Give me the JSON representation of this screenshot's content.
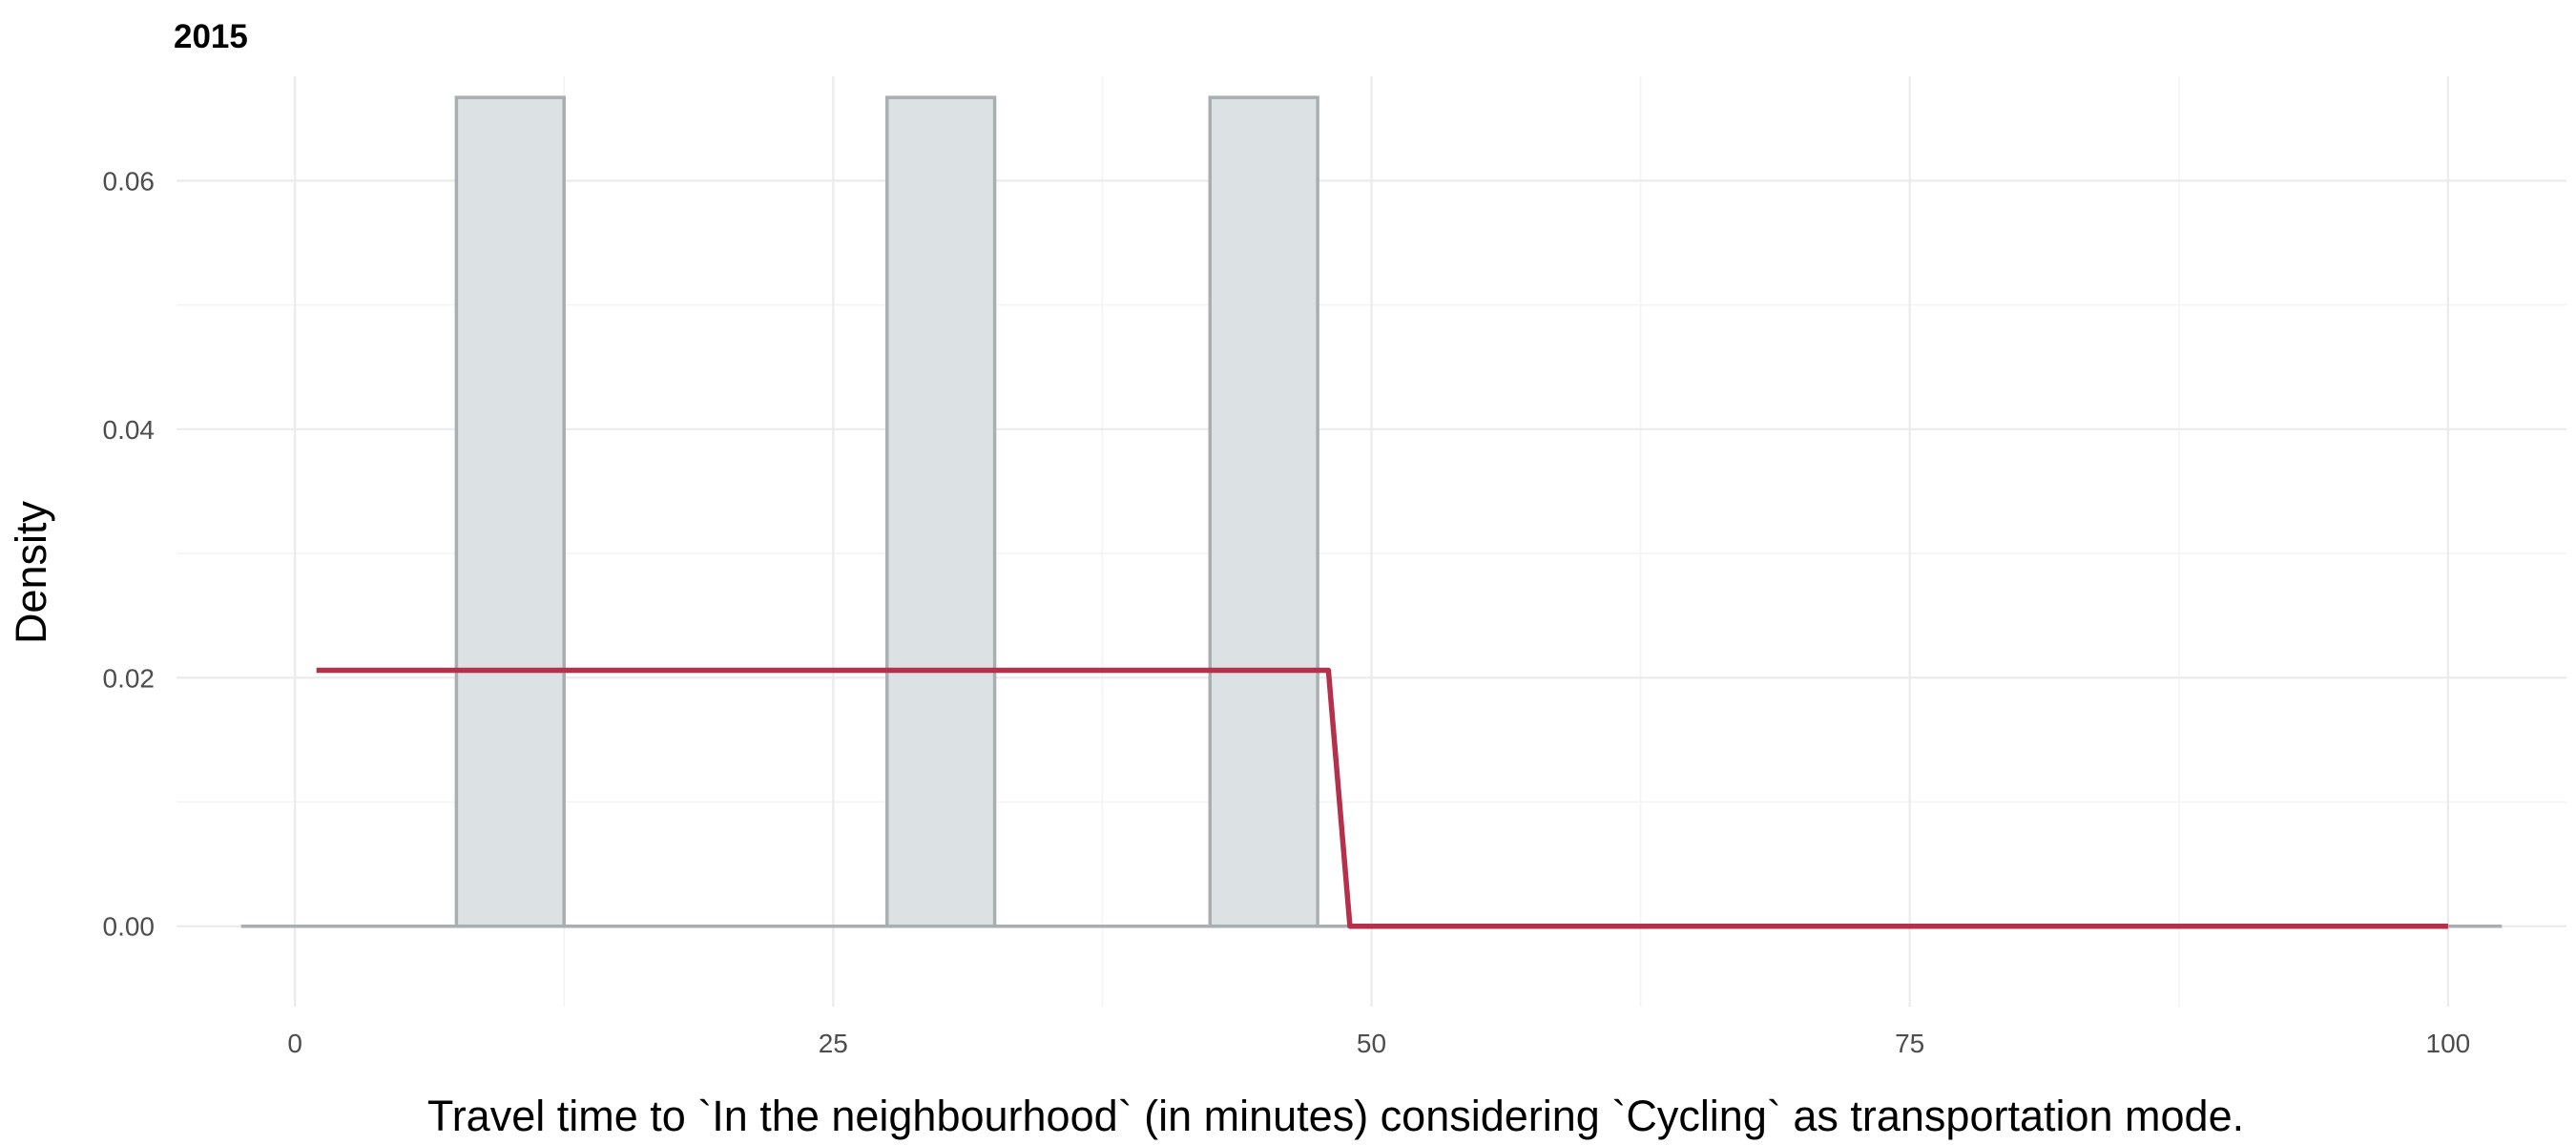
{
  "chart_data": {
    "type": "bar",
    "title": "2015",
    "xlabel": "Travel time to `In the neighbourhood` (in minutes) considering `Cycling` as transportation mode.",
    "ylabel": "Density",
    "xlim": [
      -2.5,
      102.5
    ],
    "ylim": [
      0,
      0.0667
    ],
    "x_ticks": [
      0,
      25,
      50,
      75,
      100
    ],
    "x_tick_labels": [
      "0",
      "25",
      "50",
      "75",
      "100"
    ],
    "y_ticks": [
      0,
      0.02,
      0.04,
      0.06
    ],
    "y_tick_labels": [
      "0.00",
      "0.02",
      "0.04",
      "0.06"
    ],
    "grid": true,
    "bins": [
      {
        "x0": 7.5,
        "x1": 12.5,
        "density": 0.0667
      },
      {
        "x0": 27.5,
        "x1": 32.5,
        "density": 0.0667
      },
      {
        "x0": 42.5,
        "x1": 47.5,
        "density": 0.0667
      }
    ],
    "histogram_range": [
      -2.5,
      102.5
    ],
    "density_line": {
      "x": [
        1,
        48,
        49,
        100
      ],
      "y": [
        0.0206,
        0.0206,
        0,
        0
      ]
    },
    "colors": {
      "bar_fill": "#dce1e4",
      "bar_outline": "#a9aeb1",
      "density_line": "#b5304a",
      "grid": "#ebebeb"
    }
  }
}
